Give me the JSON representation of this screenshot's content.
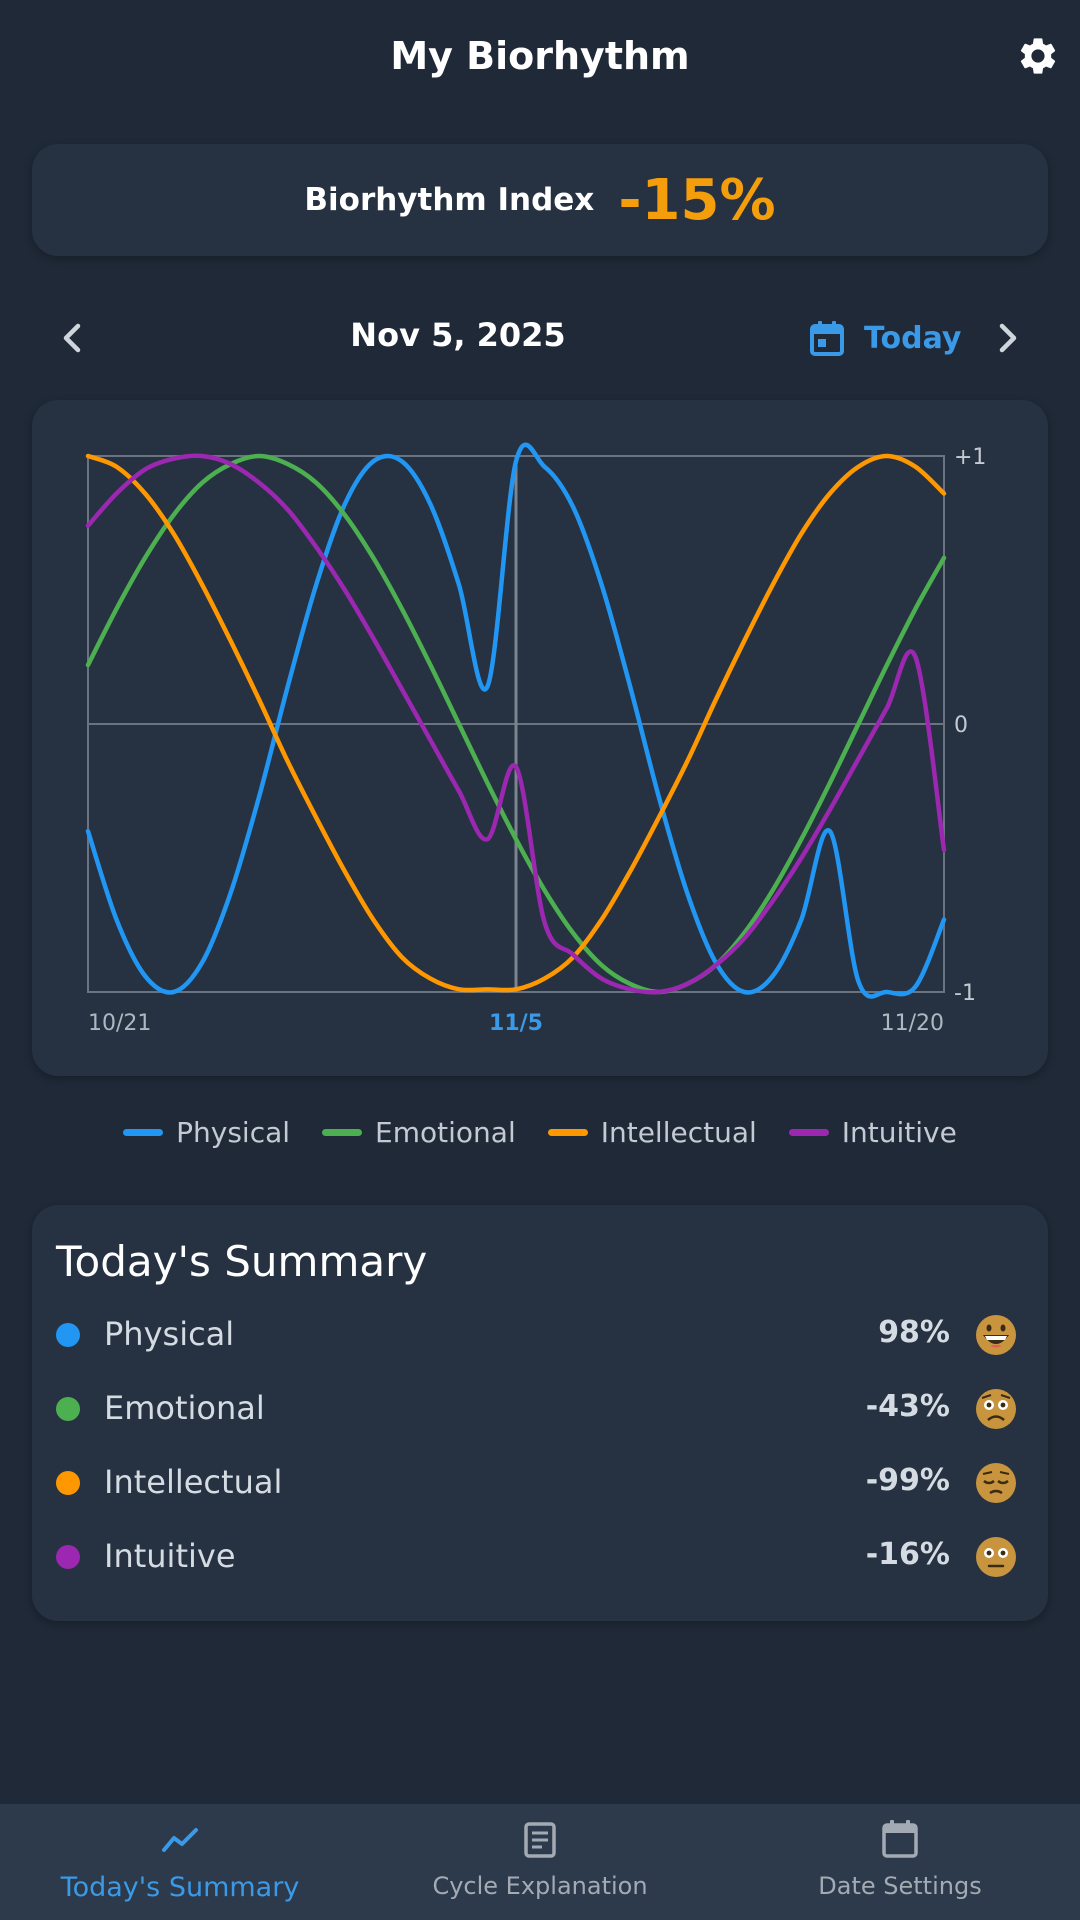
{
  "app": {
    "title": "My Biorhythm"
  },
  "index": {
    "label": "Biorhythm Index",
    "value": "-15%"
  },
  "date_nav": {
    "date": "Nov 5, 2025",
    "today_label": "Today"
  },
  "chart_data": {
    "type": "line",
    "x": [
      "10/21",
      "10/22",
      "10/23",
      "10/24",
      "10/25",
      "10/26",
      "10/27",
      "10/28",
      "10/29",
      "10/30",
      "10/31",
      "11/1",
      "11/2",
      "11/3",
      "11/4",
      "11/5",
      "11/6",
      "11/7",
      "11/8",
      "11/9",
      "11/10",
      "11/11",
      "11/12",
      "11/13",
      "11/14",
      "11/15",
      "11/16",
      "11/17",
      "11/18",
      "11/19",
      "11/20"
    ],
    "x_tick_labels": [
      "10/21",
      "11/5",
      "11/20"
    ],
    "highlighted_x": "11/5",
    "y_tick_labels": [
      "+1",
      "0",
      "-1"
    ],
    "ylim": [
      -1,
      1
    ],
    "series": [
      {
        "name": "Physical",
        "color": "#2196f3",
        "values": [
          -0.4,
          -0.73,
          -0.94,
          -1.0,
          -0.89,
          -0.63,
          -0.27,
          0.14,
          0.52,
          0.82,
          0.98,
          0.98,
          0.82,
          0.52,
          0.14,
          0.98,
          0.96,
          0.81,
          0.52,
          0.14,
          -0.27,
          -0.63,
          -0.89,
          -1.0,
          -0.94,
          -0.73,
          -0.4,
          -0.96,
          -1.0,
          -0.98,
          -0.73
        ]
      },
      {
        "name": "Emotional",
        "color": "#4caf50",
        "values": [
          0.22,
          0.43,
          0.62,
          0.78,
          0.9,
          0.97,
          1.0,
          0.97,
          0.9,
          0.78,
          0.62,
          0.43,
          0.22,
          0.0,
          -0.22,
          -0.43,
          -0.62,
          -0.78,
          -0.9,
          -0.97,
          -1.0,
          -0.97,
          -0.9,
          -0.78,
          -0.62,
          -0.43,
          -0.22,
          0.0,
          0.22,
          0.43,
          0.62
        ]
      },
      {
        "name": "Intellectual",
        "color": "#ff9800",
        "values": [
          1.0,
          0.96,
          0.86,
          0.71,
          0.52,
          0.31,
          0.09,
          -0.14,
          -0.35,
          -0.55,
          -0.73,
          -0.87,
          -0.95,
          -0.99,
          -0.99,
          -0.99,
          -0.95,
          -0.87,
          -0.73,
          -0.55,
          -0.35,
          -0.14,
          0.09,
          0.31,
          0.52,
          0.71,
          0.86,
          0.96,
          1.0,
          0.96,
          0.86
        ]
      },
      {
        "name": "Intuitive",
        "color": "#9c27b0",
        "values": [
          0.74,
          0.86,
          0.95,
          0.99,
          1.0,
          0.97,
          0.9,
          0.8,
          0.66,
          0.5,
          0.32,
          0.13,
          -0.06,
          -0.25,
          -0.43,
          -0.16,
          -0.74,
          -0.86,
          -0.95,
          -0.99,
          -1.0,
          -0.97,
          -0.9,
          -0.8,
          -0.66,
          -0.5,
          -0.32,
          -0.13,
          0.06,
          0.25,
          -0.47
        ]
      }
    ]
  },
  "legend": [
    {
      "label": "Physical",
      "color": "#2196f3"
    },
    {
      "label": "Emotional",
      "color": "#4caf50"
    },
    {
      "label": "Intellectual",
      "color": "#ff9800"
    },
    {
      "label": "Intuitive",
      "color": "#9c27b0"
    }
  ],
  "summary": {
    "title": "Today's Summary",
    "rows": [
      {
        "label": "Physical",
        "value": "98%",
        "color": "#2196f3",
        "emoji": "grinning-face-icon"
      },
      {
        "label": "Emotional",
        "value": "-43%",
        "color": "#4caf50",
        "emoji": "worried-face-icon"
      },
      {
        "label": "Intellectual",
        "value": "-99%",
        "color": "#ff9800",
        "emoji": "pensive-face-icon"
      },
      {
        "label": "Intuitive",
        "value": "-16%",
        "color": "#9c27b0",
        "emoji": "neutral-face-icon"
      }
    ]
  },
  "bottom_nav": [
    {
      "label": "Today's Summary",
      "icon": "trend-line-icon",
      "active": true
    },
    {
      "label": "Cycle Explanation",
      "icon": "document-icon",
      "active": false
    },
    {
      "label": "Date Settings",
      "icon": "calendar-icon",
      "active": false
    }
  ],
  "colors": {
    "accent": "#3b9ae8",
    "index_value": "#f59e0b",
    "background": "#1f2937",
    "card": "#263241"
  }
}
